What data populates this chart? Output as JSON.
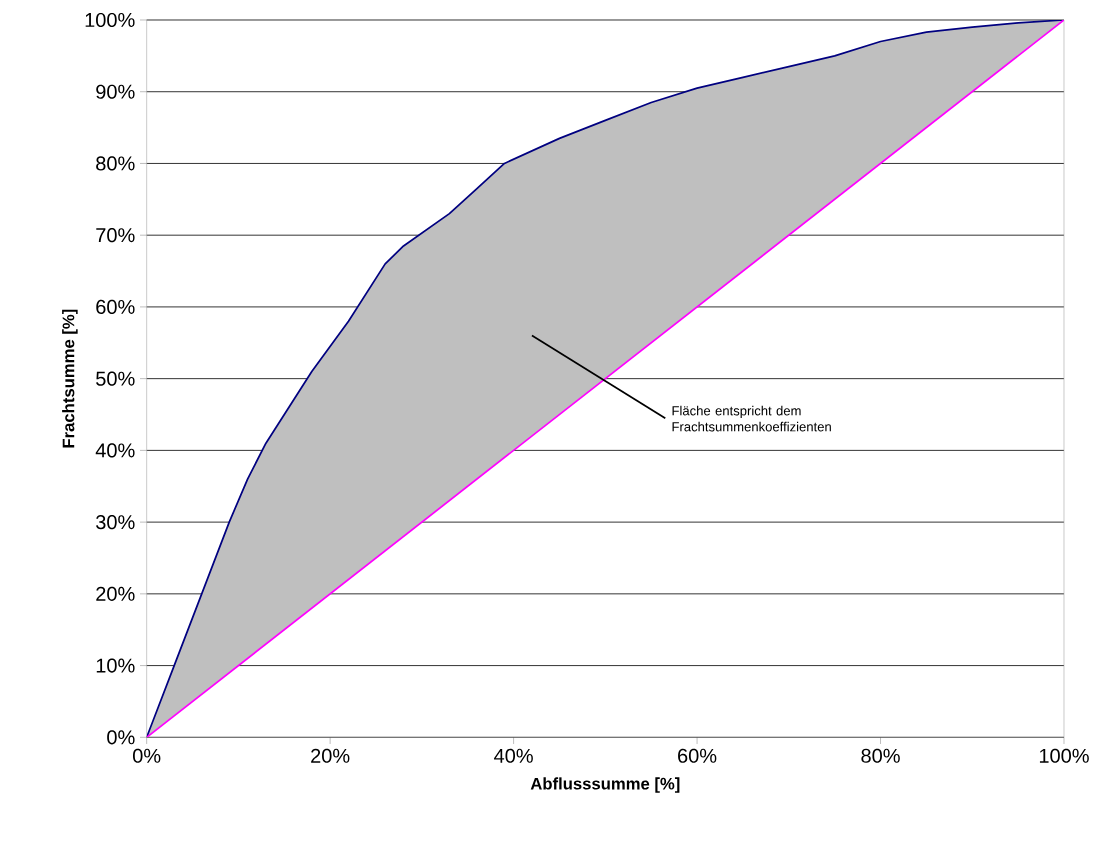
{
  "chart_data": {
    "type": "line",
    "xlabel": "Abflusssumme [%]",
    "ylabel": "Frachtsumme [%]",
    "series": [
      {
        "color": "#000080",
        "x": [
          0,
          3,
          6,
          9,
          11,
          13,
          18,
          22,
          26,
          28,
          33,
          36,
          39,
          45,
          50,
          55,
          60,
          65,
          70,
          75,
          80,
          85,
          90,
          95,
          100
        ],
        "values": [
          0,
          10,
          20,
          30,
          36,
          41,
          51,
          58,
          66,
          68.5,
          73,
          76.5,
          80,
          83.5,
          86,
          88.5,
          90.5,
          92,
          93.5,
          95,
          97,
          98.3,
          99,
          99.6,
          100
        ]
      },
      {
        "color": "#ff00ff",
        "x": [
          0,
          100
        ],
        "values": [
          0,
          100
        ]
      }
    ],
    "xlim": [
      0,
      100
    ],
    "ylim": [
      0,
      100
    ],
    "xticks": [
      {
        "value": 0,
        "label": "0%"
      },
      {
        "value": 20,
        "label": "20%"
      },
      {
        "value": 40,
        "label": "40%"
      },
      {
        "value": 60,
        "label": "60%"
      },
      {
        "value": 80,
        "label": "80%"
      },
      {
        "value": 100,
        "label": "100%"
      }
    ],
    "yticks": [
      {
        "value": 0,
        "label": "0%"
      },
      {
        "value": 10,
        "label": "10%"
      },
      {
        "value": 20,
        "label": "20%"
      },
      {
        "value": 30,
        "label": "30%"
      },
      {
        "value": 40,
        "label": "40%"
      },
      {
        "value": 50,
        "label": "50%"
      },
      {
        "value": 60,
        "label": "60%"
      },
      {
        "value": 70,
        "label": "70%"
      },
      {
        "value": 80,
        "label": "80%"
      },
      {
        "value": 90,
        "label": "90%"
      },
      {
        "value": 100,
        "label": "100%"
      }
    ],
    "grid": "y",
    "marker": "none",
    "line_style": "solid",
    "annotations": [
      "Fläche entspricht dem Frachtsummenkoeffizienten"
    ]
  }
}
